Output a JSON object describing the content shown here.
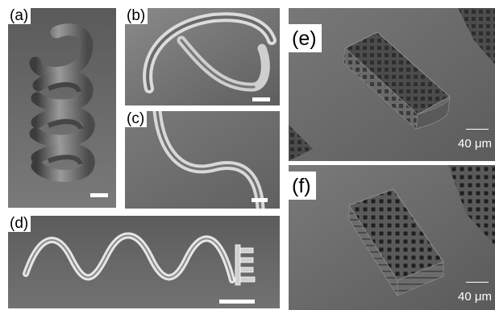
{
  "panels": {
    "a": {
      "label": "(a)"
    },
    "b": {
      "label": "(b)"
    },
    "c": {
      "label": "(c)"
    },
    "d": {
      "label": "(d)"
    },
    "e": {
      "label": "(e)",
      "scale_label": "40 μm"
    },
    "f": {
      "label": "(f)",
      "scale_label": "40 μm"
    }
  }
}
